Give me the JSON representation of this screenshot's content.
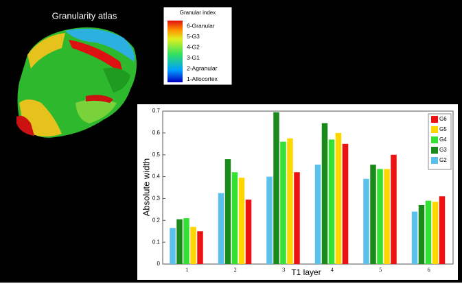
{
  "atlas": {
    "title": "Granularity atlas",
    "legend_title": "Granular index",
    "legend_labels": [
      "6-Granular",
      "5-G3",
      "4-G2",
      "3-G1",
      "2-Agranular",
      "1-Allocortex"
    ]
  },
  "chart_data": {
    "type": "bar",
    "y_label": "Absolute width",
    "x_label": "T1 layer",
    "categories": [
      "1",
      "2",
      "3",
      "4",
      "5",
      "6"
    ],
    "series": [
      {
        "name": "G2",
        "color": "#5bc0eb",
        "values": [
          0.165,
          0.325,
          0.4,
          0.455,
          0.39,
          0.24
        ]
      },
      {
        "name": "G3",
        "color": "#1a8a1a",
        "values": [
          0.205,
          0.48,
          0.695,
          0.645,
          0.455,
          0.27
        ]
      },
      {
        "name": "G4",
        "color": "#33e033",
        "values": [
          0.21,
          0.42,
          0.56,
          0.57,
          0.435,
          0.29
        ]
      },
      {
        "name": "G5",
        "color": "#ffd700",
        "values": [
          0.17,
          0.395,
          0.575,
          0.6,
          0.435,
          0.285
        ]
      },
      {
        "name": "G6",
        "color": "#ee1111",
        "values": [
          0.15,
          0.295,
          0.42,
          0.55,
          0.5,
          0.31
        ]
      }
    ],
    "ylim": [
      0,
      0.7
    ],
    "yticks": [
      0,
      0.1,
      0.2,
      0.3,
      0.4,
      0.5,
      0.6,
      0.7
    ],
    "legend": "upper right"
  }
}
